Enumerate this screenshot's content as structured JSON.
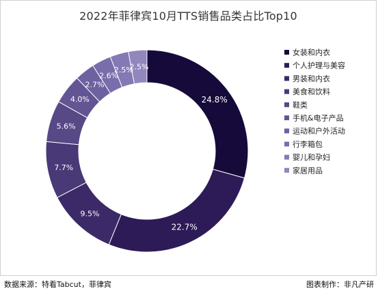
{
  "chart_data": {
    "type": "pie",
    "title": "2022年菲律宾10月TTS销售品类占比Top10",
    "categories": [
      "女装和内衣",
      "个人护理与美容",
      "男装和内衣",
      "美食和饮料",
      "鞋类",
      "手机&电子产品",
      "运动和户外活动",
      "行李箱包",
      "婴儿和孕妇",
      "家居用品"
    ],
    "values": [
      24.8,
      22.7,
      9.5,
      7.7,
      5.6,
      4.0,
      2.7,
      2.6,
      2.5,
      2.5
    ],
    "data_labels": [
      "24.8%",
      "22.7%",
      "9.5%",
      "7.7%",
      "5.6%",
      "4.0%",
      "2.7%",
      "2.6%",
      "2.5%",
      "2.5%"
    ],
    "colors": [
      "#150a3a",
      "#2d1b57",
      "#3c2a68",
      "#4a3977",
      "#574886",
      "#635594",
      "#6e61a0",
      "#796dab",
      "#8579b4",
      "#9187bd"
    ],
    "legend_position": "right",
    "donut": true
  },
  "footer": {
    "source": "数据来源：特看Tabcut，菲律宾",
    "maker": "图表制作：非凡产研"
  }
}
